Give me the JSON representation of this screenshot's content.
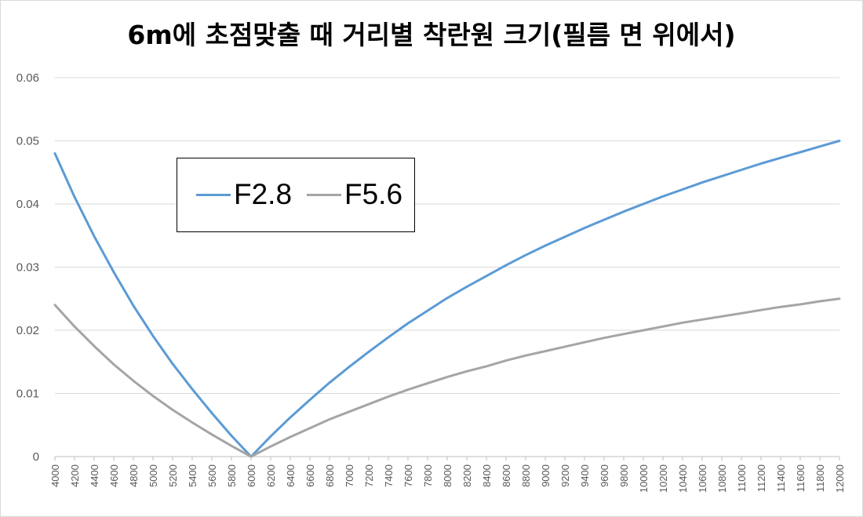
{
  "chart_data": {
    "type": "line",
    "title": "6m에 초점맞출 때 거리별 착란원 크기(필름 면 위에서)",
    "xlabel": "",
    "ylabel": "",
    "ylim": [
      0,
      0.06
    ],
    "yticks": [
      "0",
      "0.01",
      "0.02",
      "0.03",
      "0.04",
      "0.05",
      "0.06"
    ],
    "grid": true,
    "legend_position": "upper-left",
    "x": [
      4000,
      4200,
      4400,
      4600,
      4800,
      5000,
      5200,
      5400,
      5600,
      5800,
      6000,
      6200,
      6400,
      6600,
      6800,
      7000,
      7200,
      7400,
      7600,
      7800,
      8000,
      8200,
      8400,
      8600,
      8800,
      9000,
      9200,
      9400,
      9600,
      9800,
      10000,
      10200,
      10400,
      10600,
      10800,
      11000,
      11200,
      11400,
      11600,
      11800,
      12000
    ],
    "x_tick_labels": [
      "4000",
      "4200",
      "4400",
      "4600",
      "4800",
      "5000",
      "5200",
      "5400",
      "5600",
      "5800",
      "6000",
      "6200",
      "6400",
      "6600",
      "6800",
      "7000",
      "7200",
      "7400",
      "7600",
      "7800",
      "8000",
      "8200",
      "8400",
      "8600",
      "8800",
      "9000",
      "9200",
      "9400",
      "9600",
      "9800",
      "10000",
      "10200",
      "10400",
      "10600",
      "10800",
      "11000",
      "11200",
      "11400",
      "11600",
      "11800",
      "12000"
    ],
    "series": [
      {
        "name": "F2.8",
        "color": "#5B9BD5",
        "values": [
          0.048,
          0.0411,
          0.0349,
          0.0292,
          0.0239,
          0.0191,
          0.0147,
          0.0107,
          0.0069,
          0.0033,
          0,
          0.0032,
          0.0062,
          0.009,
          0.0117,
          0.0142,
          0.0166,
          0.0189,
          0.0211,
          0.0231,
          0.0251,
          0.0269,
          0.0286,
          0.0303,
          0.0319,
          0.0334,
          0.0348,
          0.0362,
          0.0375,
          0.0388,
          0.04,
          0.0412,
          0.0423,
          0.0434,
          0.0444,
          0.0454,
          0.0464,
          0.0473,
          0.0482,
          0.0491,
          0.05
        ]
      },
      {
        "name": "F5.6",
        "color": "#A5A5A5",
        "values": [
          0.024,
          0.0206,
          0.0175,
          0.0146,
          0.012,
          0.0096,
          0.0074,
          0.0054,
          0.0035,
          0.0017,
          0,
          0.0016,
          0.0031,
          0.0045,
          0.0059,
          0.0071,
          0.0083,
          0.0095,
          0.0106,
          0.0116,
          0.0126,
          0.0135,
          0.0143,
          0.0152,
          0.016,
          0.0167,
          0.0174,
          0.0181,
          0.0188,
          0.0194,
          0.02,
          0.0206,
          0.0212,
          0.0217,
          0.0222,
          0.0227,
          0.0232,
          0.0237,
          0.0241,
          0.0246,
          0.025
        ]
      }
    ]
  }
}
